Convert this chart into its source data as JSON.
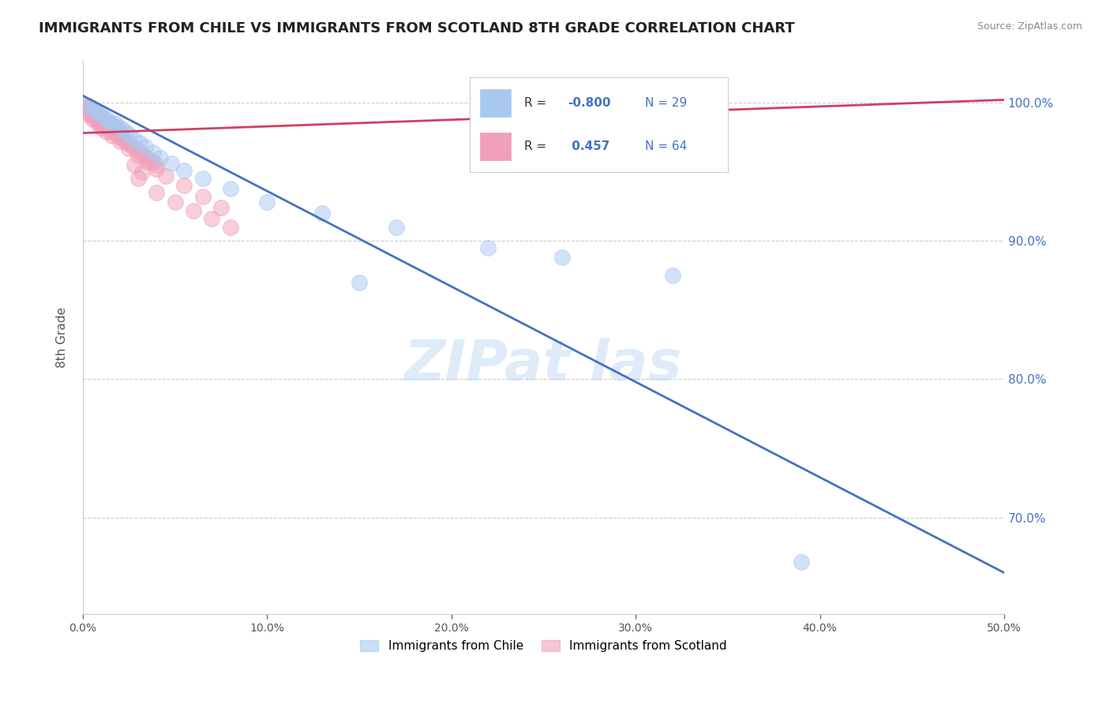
{
  "title": "IMMIGRANTS FROM CHILE VS IMMIGRANTS FROM SCOTLAND 8TH GRADE CORRELATION CHART",
  "source": "Source: ZipAtlas.com",
  "ylabel": "8th Grade",
  "xmin": 0.0,
  "xmax": 0.5,
  "ymin": 0.63,
  "ymax": 1.03,
  "yticks": [
    0.7,
    0.8,
    0.9,
    1.0
  ],
  "ytick_labels": [
    "70.0%",
    "80.0%",
    "90.0%",
    "100.0%"
  ],
  "xticks": [
    0.0,
    0.1,
    0.2,
    0.3,
    0.4,
    0.5
  ],
  "xtick_labels": [
    "0.0%",
    "10.0%",
    "20.0%",
    "30.0%",
    "40.0%",
    "50.0%"
  ],
  "legend_bottom": [
    "Immigrants from Chile",
    "Immigrants from Scotland"
  ],
  "color_chile": "#a8c8f0",
  "color_scotland": "#f0a0b8",
  "color_trend_chile": "#4472c4",
  "color_trend_scotland": "#d04060",
  "watermark_text": "ZIPat las",
  "background_color": "#ffffff",
  "grid_color": "#cccccc",
  "axis_color": "#cccccc",
  "tick_color": "#555555",
  "title_color": "#222222",
  "source_color": "#888888",
  "legend_text_color": "#4472c4",
  "legend_r_label_color": "#333333",
  "blue_points": [
    [
      0.003,
      0.998
    ],
    [
      0.005,
      0.996
    ],
    [
      0.007,
      0.994
    ],
    [
      0.009,
      0.992
    ],
    [
      0.011,
      0.99
    ],
    [
      0.013,
      0.988
    ],
    [
      0.015,
      0.986
    ],
    [
      0.017,
      0.985
    ],
    [
      0.019,
      0.983
    ],
    [
      0.021,
      0.981
    ],
    [
      0.023,
      0.979
    ],
    [
      0.025,
      0.977
    ],
    [
      0.028,
      0.974
    ],
    [
      0.031,
      0.971
    ],
    [
      0.034,
      0.968
    ],
    [
      0.038,
      0.964
    ],
    [
      0.042,
      0.96
    ],
    [
      0.048,
      0.956
    ],
    [
      0.055,
      0.951
    ],
    [
      0.065,
      0.945
    ],
    [
      0.08,
      0.938
    ],
    [
      0.1,
      0.928
    ],
    [
      0.13,
      0.92
    ],
    [
      0.17,
      0.91
    ],
    [
      0.22,
      0.895
    ],
    [
      0.26,
      0.888
    ],
    [
      0.32,
      0.875
    ],
    [
      0.39,
      0.668
    ],
    [
      0.15,
      0.87
    ]
  ],
  "pink_points": [
    [
      0.001,
      0.998
    ],
    [
      0.002,
      0.997
    ],
    [
      0.003,
      0.996
    ],
    [
      0.004,
      0.995
    ],
    [
      0.005,
      0.994
    ],
    [
      0.006,
      0.993
    ],
    [
      0.007,
      0.992
    ],
    [
      0.008,
      0.991
    ],
    [
      0.009,
      0.99
    ],
    [
      0.01,
      0.989
    ],
    [
      0.011,
      0.988
    ],
    [
      0.012,
      0.987
    ],
    [
      0.013,
      0.986
    ],
    [
      0.014,
      0.985
    ],
    [
      0.015,
      0.984
    ],
    [
      0.016,
      0.983
    ],
    [
      0.017,
      0.982
    ],
    [
      0.018,
      0.981
    ],
    [
      0.019,
      0.98
    ],
    [
      0.02,
      0.979
    ],
    [
      0.002,
      0.993
    ],
    [
      0.004,
      0.991
    ],
    [
      0.006,
      0.989
    ],
    [
      0.008,
      0.987
    ],
    [
      0.01,
      0.985
    ],
    [
      0.012,
      0.983
    ],
    [
      0.014,
      0.981
    ],
    [
      0.016,
      0.979
    ],
    [
      0.018,
      0.977
    ],
    [
      0.02,
      0.975
    ],
    [
      0.022,
      0.973
    ],
    [
      0.024,
      0.971
    ],
    [
      0.026,
      0.969
    ],
    [
      0.028,
      0.967
    ],
    [
      0.03,
      0.965
    ],
    [
      0.032,
      0.963
    ],
    [
      0.034,
      0.961
    ],
    [
      0.036,
      0.959
    ],
    [
      0.038,
      0.957
    ],
    [
      0.04,
      0.955
    ],
    [
      0.005,
      0.988
    ],
    [
      0.008,
      0.985
    ],
    [
      0.01,
      0.982
    ],
    [
      0.013,
      0.979
    ],
    [
      0.016,
      0.976
    ],
    [
      0.02,
      0.972
    ],
    [
      0.025,
      0.967
    ],
    [
      0.03,
      0.962
    ],
    [
      0.035,
      0.957
    ],
    [
      0.04,
      0.952
    ],
    [
      0.045,
      0.947
    ],
    [
      0.055,
      0.94
    ],
    [
      0.065,
      0.932
    ],
    [
      0.075,
      0.924
    ],
    [
      0.03,
      0.945
    ],
    [
      0.04,
      0.935
    ],
    [
      0.05,
      0.928
    ],
    [
      0.06,
      0.922
    ],
    [
      0.07,
      0.916
    ],
    [
      0.08,
      0.91
    ],
    [
      0.028,
      0.955
    ],
    [
      0.032,
      0.95
    ],
    [
      0.3,
      0.998
    ],
    [
      0.33,
      0.997
    ]
  ],
  "blue_trend_x": [
    0.0,
    0.5
  ],
  "blue_trend_y": [
    1.005,
    0.66
  ],
  "pink_trend_x": [
    0.0,
    0.5
  ],
  "pink_trend_y": [
    0.978,
    1.002
  ]
}
